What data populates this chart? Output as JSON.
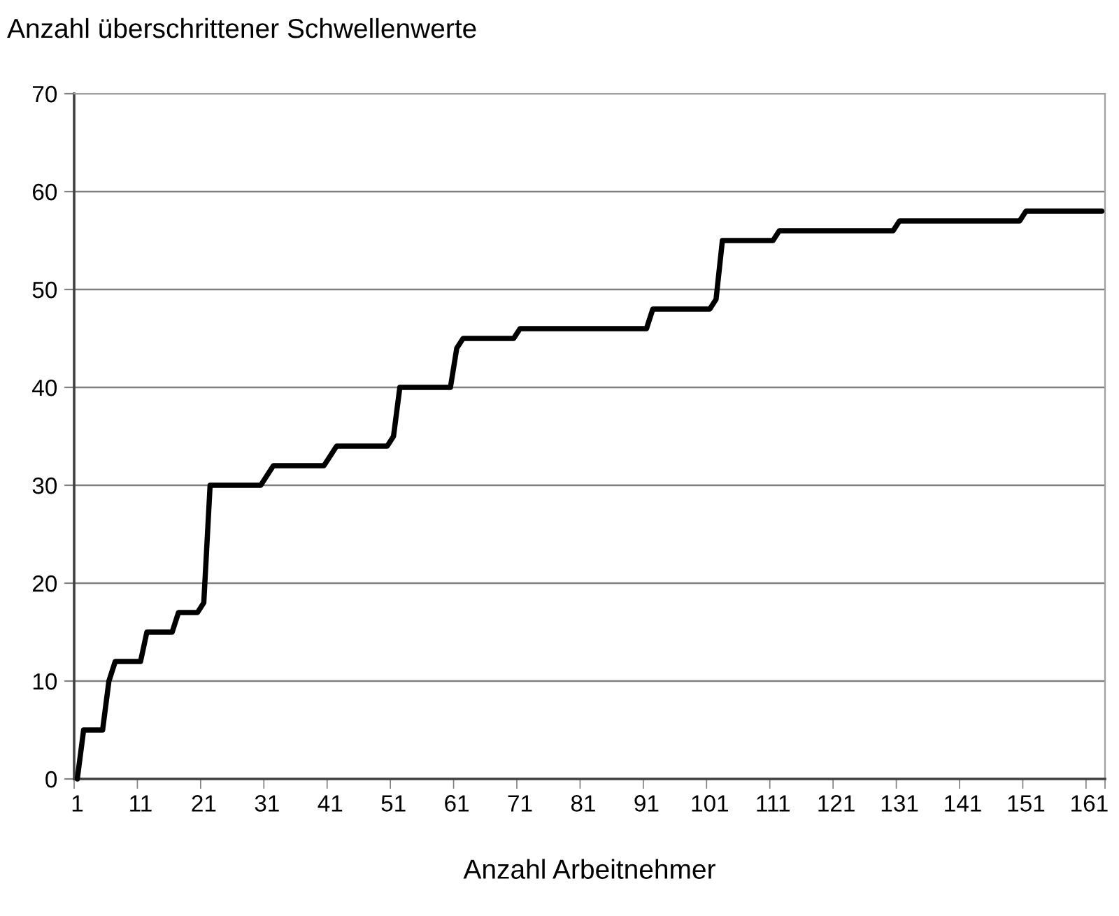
{
  "chart_data": {
    "type": "line",
    "ylabel": "Anzahl überschrittener Schwellenwerte",
    "xlabel": "Anzahl Arbeitnehmer",
    "categories": [
      "1",
      null,
      null,
      null,
      null,
      null,
      null,
      null,
      null,
      null,
      "11",
      null,
      null,
      null,
      null,
      null,
      null,
      null,
      null,
      null,
      "21",
      null,
      null,
      null,
      null,
      null,
      null,
      null,
      null,
      null,
      "31",
      null,
      null,
      null,
      null,
      null,
      null,
      null,
      null,
      null,
      "41",
      null,
      null,
      null,
      null,
      null,
      null,
      null,
      null,
      null,
      "51",
      null,
      null,
      null,
      null,
      null,
      null,
      null,
      null,
      null,
      "61",
      null,
      null,
      null,
      null,
      null,
      null,
      null,
      null,
      null,
      "71",
      null,
      null,
      null,
      null,
      null,
      null,
      null,
      null,
      null,
      "81",
      null,
      null,
      null,
      null,
      null,
      null,
      null,
      null,
      null,
      "91",
      null,
      null,
      null,
      null,
      null,
      null,
      null,
      null,
      null,
      "101",
      null,
      null,
      null,
      null,
      null,
      null,
      null,
      null,
      null,
      "111",
      null,
      null,
      null,
      null,
      null,
      null,
      null,
      null,
      null,
      "121",
      null,
      null,
      null,
      null,
      null,
      null,
      null,
      null,
      null,
      "131",
      null,
      null,
      null,
      null,
      null,
      null,
      null,
      null,
      null,
      "141",
      null,
      null,
      null,
      null,
      null,
      null,
      null,
      null,
      null,
      "151",
      null,
      null,
      null,
      null,
      null,
      null,
      null,
      null,
      null,
      "161",
      null,
      null
    ],
    "series": [
      {
        "color": "#000000",
        "values": [
          0,
          5,
          5,
          5,
          5,
          10,
          12,
          12,
          12,
          12,
          12,
          15,
          15,
          15,
          15,
          15,
          17,
          17,
          17,
          17,
          18,
          30,
          30,
          30,
          30,
          30,
          30,
          30,
          30,
          30,
          31,
          32,
          32,
          32,
          32,
          32,
          32,
          32,
          32,
          32,
          33,
          34,
          34,
          34,
          34,
          34,
          34,
          34,
          34,
          34,
          35,
          40,
          40,
          40,
          40,
          40,
          40,
          40,
          40,
          40,
          44,
          45,
          45,
          45,
          45,
          45,
          45,
          45,
          45,
          45,
          46,
          46,
          46,
          46,
          46,
          46,
          46,
          46,
          46,
          46,
          46,
          46,
          46,
          46,
          46,
          46,
          46,
          46,
          46,
          46,
          46,
          48,
          48,
          48,
          48,
          48,
          48,
          48,
          48,
          48,
          48,
          49,
          55,
          55,
          55,
          55,
          55,
          55,
          55,
          55,
          55,
          56,
          56,
          56,
          56,
          56,
          56,
          56,
          56,
          56,
          56,
          56,
          56,
          56,
          56,
          56,
          56,
          56,
          56,
          56,
          57,
          57,
          57,
          57,
          57,
          57,
          57,
          57,
          57,
          57,
          57,
          57,
          57,
          57,
          57,
          57,
          57,
          57,
          57,
          57,
          58,
          58,
          58,
          58,
          58,
          58,
          58,
          58,
          58,
          58,
          58,
          58,
          58
        ]
      }
    ],
    "ylim": [
      0,
      70
    ],
    "yticks": [
      0,
      10,
      20,
      30,
      40,
      50,
      60,
      70
    ],
    "grid": "y",
    "legend": false,
    "marker": "none",
    "line_style": "solid"
  }
}
